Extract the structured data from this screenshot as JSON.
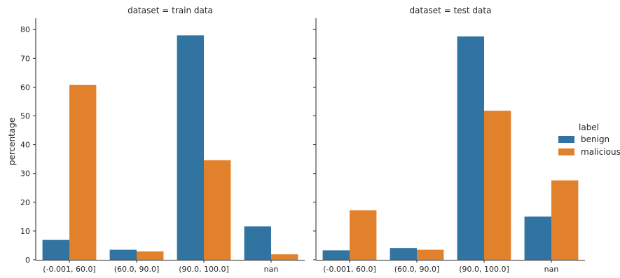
{
  "chart_data": {
    "type": "bar",
    "categories": [
      "(-0.001, 60.0]",
      "(60.0, 90.0]",
      "(90.0, 100.0]",
      "nan"
    ],
    "ylabel": "percentage",
    "ylim": [
      0,
      82
    ],
    "yticks": [
      0,
      10,
      20,
      30,
      40,
      50,
      60,
      70,
      80
    ],
    "grid": false,
    "legend": {
      "title": "label",
      "placement": "right",
      "entries": [
        {
          "name": "benign",
          "color": "#3274a1"
        },
        {
          "name": "malicious",
          "color": "#e1812c"
        }
      ]
    },
    "panels": [
      {
        "title": "dataset = train data",
        "series": [
          {
            "name": "benign",
            "color": "#3274a1",
            "values": [
              6.9,
              3.5,
              78.0,
              11.6
            ]
          },
          {
            "name": "malicious",
            "color": "#e1812c",
            "values": [
              60.8,
              2.9,
              34.6,
              1.9
            ]
          }
        ]
      },
      {
        "title": "dataset = test data",
        "series": [
          {
            "name": "benign",
            "color": "#3274a1",
            "values": [
              3.3,
              4.1,
              77.6,
              15.0
            ]
          },
          {
            "name": "malicious",
            "color": "#e1812c",
            "values": [
              17.2,
              3.5,
              51.8,
              27.6
            ]
          }
        ]
      }
    ]
  }
}
